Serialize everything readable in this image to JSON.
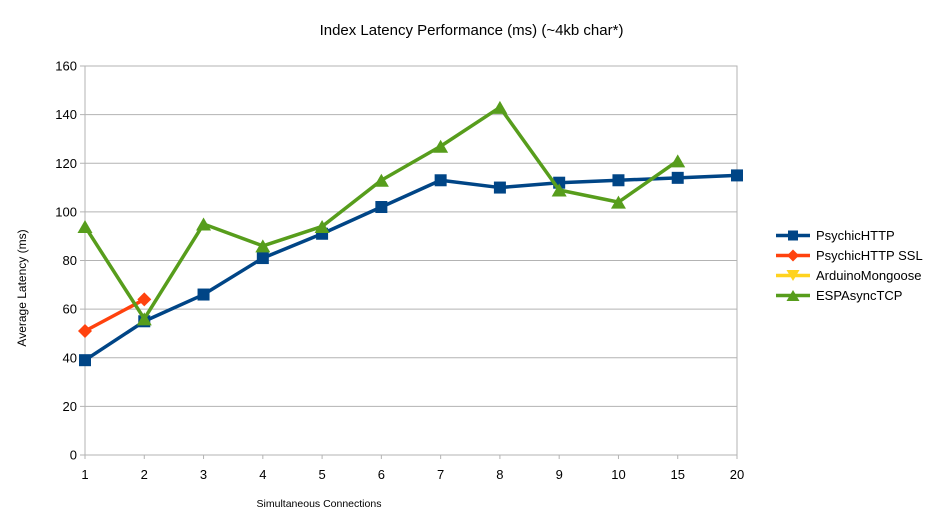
{
  "chart_data": {
    "type": "line",
    "title": "Index Latency Performance (ms) (~4kb char*)",
    "xlabel": "Simultaneous Connections",
    "ylabel": "Average Latency (ms)",
    "categories": [
      "1",
      "2",
      "3",
      "4",
      "5",
      "6",
      "7",
      "8",
      "9",
      "10",
      "15",
      "20"
    ],
    "ylim": [
      0,
      160
    ],
    "ytick_step": 20,
    "grid": "horizontal",
    "grid_color": "#b3b3b3",
    "legend_position": "right",
    "series": [
      {
        "name": "PsychicHTTP",
        "color": "#004586",
        "marker": "square",
        "values": [
          39,
          55,
          66,
          81,
          91,
          102,
          113,
          110,
          112,
          113,
          114,
          115
        ]
      },
      {
        "name": "PsychicHTTP SSL",
        "color": "#ff420e",
        "marker": "diamond",
        "values": [
          51,
          64,
          null,
          null,
          null,
          null,
          null,
          null,
          null,
          null,
          null,
          null
        ]
      },
      {
        "name": "ArduinoMongoose",
        "color": "#ffd320",
        "marker": "triangle-down",
        "values": [
          null,
          null,
          null,
          null,
          null,
          null,
          null,
          null,
          null,
          null,
          null,
          null
        ]
      },
      {
        "name": "ESPAsyncTCP",
        "color": "#579d1c",
        "marker": "triangle-up",
        "values": [
          94,
          56,
          95,
          86,
          94,
          113,
          127,
          143,
          109,
          104,
          121,
          null
        ]
      }
    ]
  }
}
